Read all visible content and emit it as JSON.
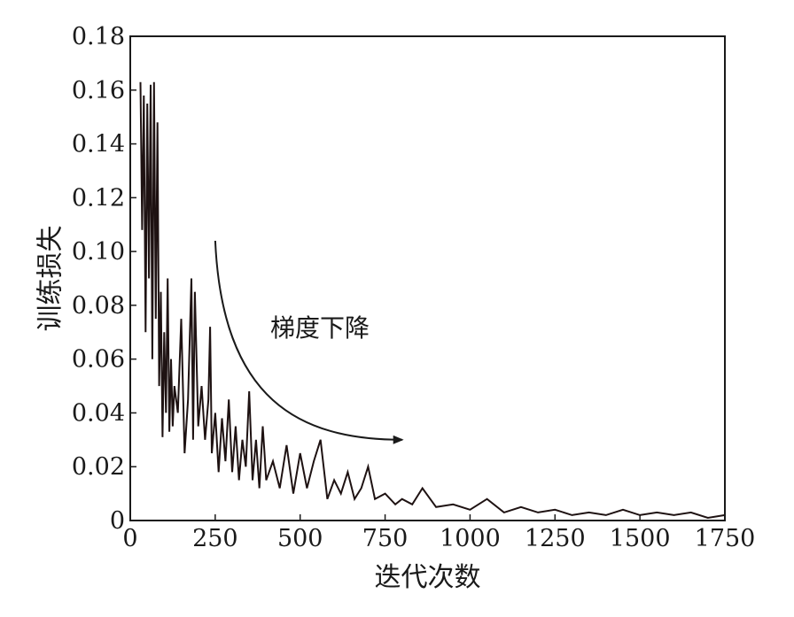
{
  "chart_data": {
    "type": "line",
    "xlabel": "迭代次数",
    "ylabel": "训练损失",
    "xlim": [
      0,
      1750
    ],
    "ylim": [
      0,
      0.18
    ],
    "xticks": [
      0,
      250,
      500,
      750,
      1000,
      1250,
      1500,
      1750
    ],
    "xtick_labels": [
      "0",
      "250",
      "500",
      "750",
      "1000",
      "1250",
      "1500",
      "1750"
    ],
    "yticks": [
      0,
      0.02,
      0.04,
      0.06,
      0.08,
      0.1,
      0.12,
      0.14,
      0.16,
      0.18
    ],
    "ytick_labels": [
      "0",
      "0.02",
      "0.04",
      "0.06",
      "0.08",
      "0.10",
      "0.12",
      "0.14",
      "0.16",
      "0.18"
    ],
    "grid": false,
    "legend": "none",
    "annotation": {
      "text": "梯度下降",
      "arrow": true,
      "arrow_start": [
        250,
        0.104
      ],
      "arrow_end": [
        800,
        0.03
      ]
    },
    "line_color": "#1e1212",
    "series": [
      {
        "x": [
          30,
          35,
          40,
          45,
          50,
          55,
          60,
          65,
          70,
          75,
          80,
          85,
          90,
          95,
          100,
          105,
          110,
          115,
          120,
          125,
          130,
          140,
          150,
          160,
          170,
          180,
          185,
          190,
          200,
          210,
          220,
          230,
          235,
          240,
          250,
          260,
          270,
          280,
          290,
          300,
          310,
          320,
          330,
          340,
          350,
          360,
          370,
          380,
          390,
          395,
          400,
          420,
          440,
          460,
          480,
          500,
          520,
          540,
          560,
          580,
          600,
          620,
          640,
          660,
          680,
          700,
          720,
          750,
          780,
          800,
          830,
          860,
          900,
          950,
          1000,
          1050,
          1100,
          1150,
          1200,
          1250,
          1300,
          1350,
          1400,
          1450,
          1500,
          1550,
          1600,
          1650,
          1700,
          1750
        ],
        "y": [
          0.163,
          0.108,
          0.158,
          0.07,
          0.155,
          0.09,
          0.162,
          0.06,
          0.163,
          0.075,
          0.148,
          0.05,
          0.085,
          0.031,
          0.07,
          0.04,
          0.09,
          0.033,
          0.06,
          0.035,
          0.05,
          0.04,
          0.075,
          0.025,
          0.045,
          0.09,
          0.03,
          0.085,
          0.035,
          0.05,
          0.03,
          0.045,
          0.072,
          0.025,
          0.04,
          0.018,
          0.038,
          0.022,
          0.045,
          0.018,
          0.035,
          0.015,
          0.03,
          0.02,
          0.048,
          0.015,
          0.03,
          0.012,
          0.035,
          0.025,
          0.015,
          0.022,
          0.012,
          0.028,
          0.01,
          0.025,
          0.012,
          0.022,
          0.03,
          0.008,
          0.015,
          0.01,
          0.018,
          0.008,
          0.012,
          0.02,
          0.008,
          0.01,
          0.006,
          0.008,
          0.006,
          0.012,
          0.005,
          0.006,
          0.004,
          0.008,
          0.003,
          0.005,
          0.003,
          0.004,
          0.002,
          0.003,
          0.002,
          0.004,
          0.002,
          0.003,
          0.002,
          0.003,
          0.001,
          0.002
        ]
      }
    ]
  }
}
